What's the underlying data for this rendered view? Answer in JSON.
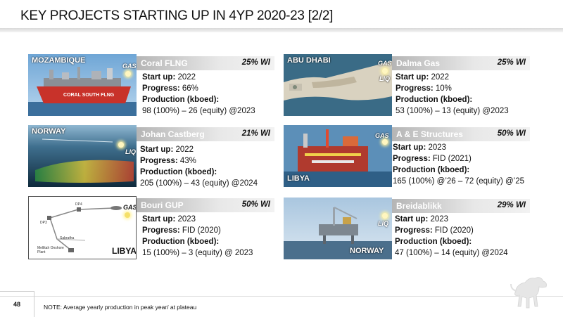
{
  "title": "KEY PROJECTS STARTING UP IN 4YP 2020-23 [2/2]",
  "page_number": "48",
  "note": "NOTE: Average yearly production in peak year/ at plateau",
  "labels": {
    "start_up": "Start up:",
    "progress": "Progress:",
    "production": "Production (kboed):"
  },
  "projects": [
    {
      "country": "MOZAMBIQUE",
      "name": "Coral FLNG",
      "wi": "25% WI",
      "tags": [
        "GAS"
      ],
      "start_up": "2022",
      "progress": "66%",
      "production": "98 (100%) – 26 (equity) @2023",
      "ship_text": "CORAL SOUTH FLNG"
    },
    {
      "country": "ABU DHABI",
      "name": "Dalma Gas",
      "wi": "25% WI",
      "tags": [
        "GAS",
        "LIQ"
      ],
      "start_up": "2022",
      "progress": "10%",
      "production": "53 (100%) – 13 (equity) @2023"
    },
    {
      "country": "NORWAY",
      "name": "Johan Castberg",
      "wi": "21% WI",
      "tags": [
        "LIQ"
      ],
      "start_up": "2022",
      "progress": "43%",
      "production": "205 (100%) – 43 (equity) @2024"
    },
    {
      "country": "LIBYA",
      "name": "A & E Structures",
      "wi": "50% WI",
      "tags": [
        "GAS"
      ],
      "start_up": "2023",
      "progress": "FID (2021)",
      "production": "165 (100%) @’26 – 72 (equity) @’25"
    },
    {
      "country": "LIBYA",
      "name": "Bouri GUP",
      "wi": "50% WI",
      "tags": [
        "GAS"
      ],
      "start_up": "2023",
      "progress": "FID (2020)",
      "production": "15 (100%) – 3 (equity) @ 2023",
      "map_labels": [
        "DP3",
        "DP4",
        "Sabratha",
        "Mellitah Onshore Plant"
      ]
    },
    {
      "country": "NORWAY",
      "name": "Breidablikk",
      "wi": "29% WI",
      "tags": [
        "LIQ"
      ],
      "start_up": "2023",
      "progress": "FID (2020)",
      "production": "47 (100%) – 14 (equity) @2024"
    }
  ],
  "colors": {
    "bar_start": "#b5b5b5",
    "bar_end": "#f2f2f2",
    "hull_red": "#c8322a"
  }
}
